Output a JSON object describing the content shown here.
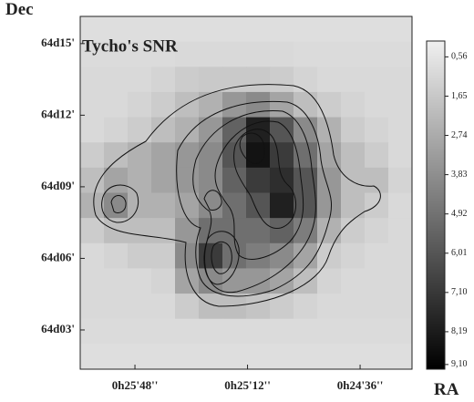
{
  "chart_data": {
    "type": "heatmap",
    "title": "Tycho's SNR",
    "xlabel": "RA",
    "ylabel": "Dec",
    "xlim": [
      1565.5,
      1459.4
    ],
    "ylim": [
      64.0226,
      64.269
    ],
    "xticks": [
      {
        "value": 1548,
        "label": "0h25'48''"
      },
      {
        "value": 1512,
        "label": "0h25'12''"
      },
      {
        "value": 1476,
        "label": "0h24'36''"
      }
    ],
    "yticks": [
      {
        "value": 64.25,
        "label": "64d15'"
      },
      {
        "value": 64.2,
        "label": "64d12'"
      },
      {
        "value": 64.15,
        "label": "64d09'"
      },
      {
        "value": 64.1,
        "label": "64d06'"
      },
      {
        "value": 64.05,
        "label": "64d03'"
      }
    ],
    "clim": [
      0.12,
      9.23
    ],
    "cticks": [
      {
        "value": 0.56,
        "label": "0,56"
      },
      {
        "value": 1.65,
        "label": "1,65"
      },
      {
        "value": 2.74,
        "label": "2,74"
      },
      {
        "value": 3.83,
        "label": "3,83"
      },
      {
        "value": 4.92,
        "label": "4,92"
      },
      {
        "value": 6.01,
        "label": "6,01"
      },
      {
        "value": 7.1,
        "label": "7,10"
      },
      {
        "value": 8.19,
        "label": "8,19"
      },
      {
        "value": 9.1,
        "label": "9,10"
      }
    ],
    "z": [
      [
        0.8,
        0.8,
        0.8,
        0.8,
        0.8,
        0.8,
        0.8,
        0.8,
        0.8,
        0.8,
        0.8,
        0.8,
        0.8,
        0.8
      ],
      [
        0.9,
        0.9,
        0.9,
        0.9,
        1.0,
        1.0,
        1.0,
        1.0,
        1.0,
        0.9,
        0.9,
        0.9,
        0.9,
        0.9
      ],
      [
        1.0,
        1.0,
        1.0,
        1.2,
        1.5,
        1.6,
        1.6,
        1.6,
        1.5,
        1.2,
        1.0,
        1.0,
        1.0,
        1.0
      ],
      [
        1.0,
        1.0,
        1.2,
        1.5,
        2.0,
        2.5,
        3.5,
        4.0,
        3.0,
        2.0,
        1.5,
        1.2,
        1.0,
        1.0
      ],
      [
        1.0,
        1.2,
        1.5,
        2.0,
        2.5,
        3.5,
        5.5,
        8.0,
        6.0,
        4.0,
        2.5,
        1.5,
        1.2,
        1.0
      ],
      [
        1.5,
        2.0,
        2.5,
        3.0,
        3.5,
        4.0,
        6.0,
        8.5,
        7.0,
        5.0,
        3.0,
        2.0,
        1.5,
        1.0
      ],
      [
        2.0,
        3.0,
        2.5,
        3.0,
        3.5,
        4.0,
        5.5,
        7.0,
        7.5,
        6.0,
        3.5,
        2.0,
        2.0,
        1.2
      ],
      [
        2.5,
        4.0,
        2.5,
        2.5,
        3.0,
        4.0,
        5.0,
        6.0,
        8.0,
        6.0,
        3.5,
        2.0,
        1.5,
        1.0
      ],
      [
        1.5,
        2.0,
        2.0,
        2.0,
        3.5,
        5.0,
        5.0,
        5.0,
        5.5,
        4.5,
        2.5,
        1.5,
        1.2,
        1.0
      ],
      [
        1.0,
        1.2,
        1.5,
        1.5,
        4.0,
        7.0,
        5.0,
        4.5,
        4.0,
        3.0,
        1.5,
        1.2,
        1.0,
        1.0
      ],
      [
        1.0,
        1.0,
        1.0,
        1.2,
        3.0,
        4.0,
        3.5,
        3.5,
        3.0,
        2.0,
        1.2,
        1.0,
        1.0,
        1.0
      ],
      [
        1.0,
        1.0,
        1.0,
        1.0,
        1.5,
        2.0,
        2.0,
        1.8,
        1.5,
        1.2,
        1.0,
        1.0,
        1.0,
        1.0
      ],
      [
        0.9,
        0.9,
        0.9,
        0.9,
        0.9,
        0.9,
        0.9,
        0.9,
        0.9,
        0.9,
        0.9,
        0.9,
        0.9,
        0.9
      ],
      [
        0.8,
        0.8,
        0.8,
        0.8,
        0.8,
        0.8,
        0.8,
        0.8,
        0.8,
        0.8,
        0.8,
        0.8,
        0.8,
        0.8
      ]
    ]
  }
}
